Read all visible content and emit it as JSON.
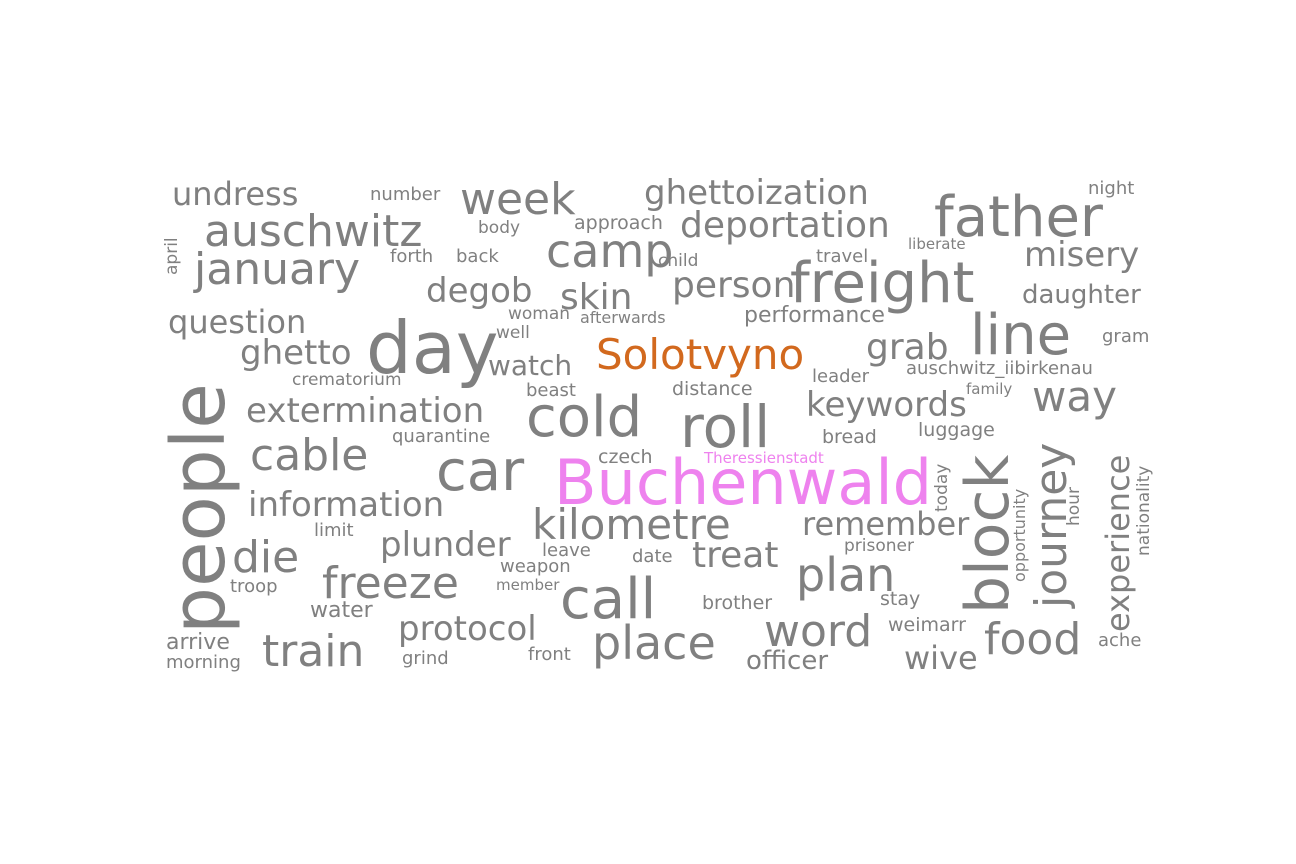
{
  "colors": {
    "default": "#808080",
    "highlight_orange": "#d2691e",
    "highlight_violet": "#ee82ee"
  },
  "words": {
    "people": "people",
    "buchenwald": "Buchenwald",
    "day": "day",
    "solotvyno": "Solotvyno",
    "father": "father",
    "freight": "freight",
    "line": "line",
    "block": "block",
    "roll": "roll",
    "cold": "cold",
    "car": "car",
    "call": "call",
    "journey": "journey",
    "auschwitz": "auschwitz",
    "january": "january",
    "week": "week",
    "camp": "camp",
    "place": "place",
    "word": "word",
    "train": "train",
    "freeze": "freeze",
    "kilometre": "kilometre",
    "plan": "plan",
    "food": "food",
    "die": "die",
    "cable": "cable",
    "way": "way",
    "deportation": "deportation",
    "ghettoization": "ghettoization",
    "undress": "undress",
    "misery": "misery",
    "degob": "degob",
    "person": "person",
    "skin": "skin",
    "question": "question",
    "ghetto": "ghetto",
    "grab": "grab",
    "extermination": "extermination",
    "keywords": "keywords",
    "information": "information",
    "remember": "remember",
    "plunder": "plunder",
    "treat": "treat",
    "protocol": "protocol",
    "wive": "wive",
    "experience": "experience",
    "daughter": "daughter",
    "watch": "watch",
    "officer": "officer",
    "performance": "performance",
    "number": "number",
    "night": "night",
    "approach": "approach",
    "body": "body",
    "april": "april",
    "forth": "forth",
    "back": "back",
    "child": "child",
    "travel": "travel",
    "liberate": "liberate",
    "woman": "woman",
    "afterwards": "afterwards",
    "well": "well",
    "gram": "gram",
    "crematorium": "crematorium",
    "beast": "beast",
    "distance": "distance",
    "leader": "leader",
    "auschwitz_iibirkenau": "auschwitz_iibirkenau",
    "family": "family",
    "quarantine": "quarantine",
    "bread": "bread",
    "luggage": "luggage",
    "czech": "czech",
    "theressienstadt": "Theressienstadt",
    "today": "today",
    "opportunity": "opportunity",
    "hour": "hour",
    "nationality": "nationality",
    "limit": "limit",
    "leave": "leave",
    "prisoner": "prisoner",
    "date": "date",
    "weapon": "weapon",
    "troop": "troop",
    "member": "member",
    "water": "water",
    "brother": "brother",
    "stay": "stay",
    "weimarr": "weimarr",
    "arrive": "arrive",
    "morning": "morning",
    "grind": "grind",
    "front": "front",
    "ache": "ache"
  }
}
